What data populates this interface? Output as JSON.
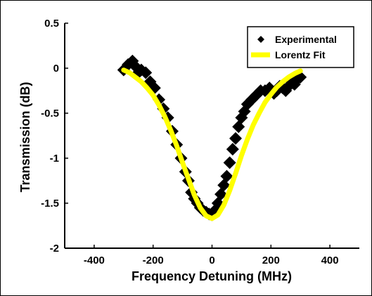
{
  "chart_data": {
    "type": "scatter",
    "xlabel": "Frequency Detuning (MHz)",
    "ylabel": "Transmission (dB)",
    "xlim": [
      -500,
      500
    ],
    "ylim": [
      -2,
      0.5
    ],
    "xticks": [
      -400,
      -200,
      0,
      200,
      400
    ],
    "xtick_labels": [
      "-400",
      "-200",
      "0",
      "200",
      "400"
    ],
    "yticks": [
      0.5,
      0,
      -0.5,
      -1,
      -1.5,
      -2
    ],
    "ytick_labels": [
      "0.5",
      "0",
      "-0.5",
      "-1",
      "-1.5",
      "-2"
    ],
    "grid": false,
    "legend_position": "top-right",
    "series": [
      {
        "name": "Experimental",
        "marker": "diamond",
        "color": "#000000",
        "x": [
          -300,
          -285,
          -270,
          -260,
          -250,
          -240,
          -225,
          -210,
          -195,
          -180,
          -165,
          -150,
          -135,
          -120,
          -105,
          -90,
          -80,
          -70,
          -60,
          -50,
          -40,
          -30,
          -20,
          -10,
          0,
          10,
          20,
          30,
          40,
          50,
          60,
          70,
          80,
          90,
          100,
          110,
          120,
          135,
          150,
          165,
          180,
          195,
          210,
          220,
          230,
          240,
          250,
          260,
          270,
          280,
          290,
          300
        ],
        "y": [
          -0.02,
          0.04,
          0.08,
          0.02,
          -0.05,
          -0.02,
          -0.05,
          -0.15,
          -0.22,
          -0.35,
          -0.45,
          -0.55,
          -0.7,
          -0.85,
          -1.0,
          -1.15,
          -1.25,
          -1.38,
          -1.45,
          -1.5,
          -1.55,
          -1.58,
          -1.6,
          -1.62,
          -1.63,
          -1.58,
          -1.5,
          -1.4,
          -1.3,
          -1.2,
          -1.05,
          -0.9,
          -0.78,
          -0.65,
          -0.55,
          -0.48,
          -0.4,
          -0.35,
          -0.3,
          -0.25,
          -0.25,
          -0.22,
          -0.28,
          -0.25,
          -0.2,
          -0.22,
          -0.25,
          -0.2,
          -0.15,
          -0.18,
          -0.12,
          -0.1
        ]
      },
      {
        "name": "Lorentz Fit",
        "line": true,
        "color": "#ffff00",
        "x": [
          -300,
          -280,
          -260,
          -240,
          -220,
          -200,
          -180,
          -160,
          -140,
          -120,
          -100,
          -80,
          -60,
          -40,
          -20,
          0,
          20,
          40,
          60,
          80,
          100,
          120,
          140,
          160,
          180,
          200,
          220,
          240,
          260,
          280,
          300
        ],
        "y": [
          -0.02,
          -0.05,
          -0.1,
          -0.15,
          -0.22,
          -0.3,
          -0.41,
          -0.54,
          -0.69,
          -0.86,
          -1.05,
          -1.23,
          -1.41,
          -1.55,
          -1.64,
          -1.67,
          -1.63,
          -1.52,
          -1.36,
          -1.17,
          -0.97,
          -0.79,
          -0.63,
          -0.5,
          -0.38,
          -0.29,
          -0.21,
          -0.15,
          -0.1,
          -0.06,
          -0.03
        ]
      }
    ]
  }
}
